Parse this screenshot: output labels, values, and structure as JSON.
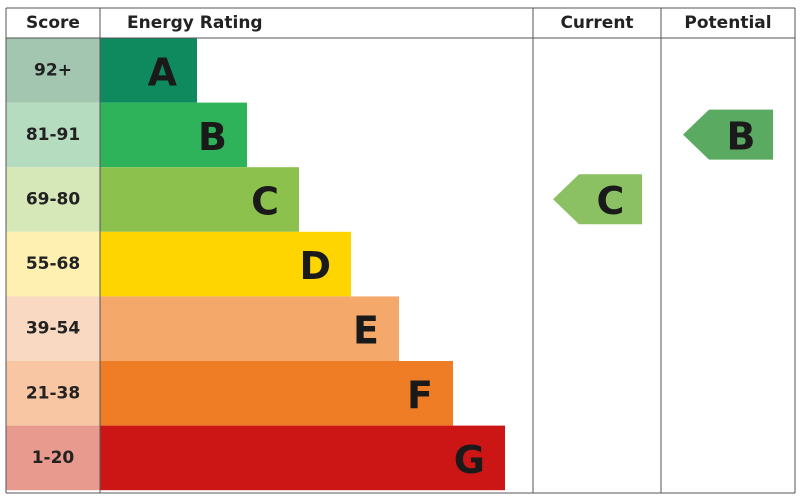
{
  "header": {
    "score": "Score",
    "rating": "Energy Rating",
    "current": "Current",
    "potential": "Potential"
  },
  "rows": [
    {
      "score": "92+",
      "band": "A",
      "color": "#0f8a5f",
      "score_color": "#a3c6b1"
    },
    {
      "score": "81-91",
      "band": "B",
      "color": "#2fb35a",
      "score_color": "#b5dcbf"
    },
    {
      "score": "69-80",
      "band": "C",
      "color": "#8cc14e",
      "score_color": "#d6e8b8"
    },
    {
      "score": "55-68",
      "band": "D",
      "color": "#ffd500",
      "score_color": "#fdf0b0"
    },
    {
      "score": "39-54",
      "band": "E",
      "color": "#f4a86a",
      "score_color": "#f9d9c2"
    },
    {
      "score": "21-38",
      "band": "F",
      "color": "#ee7d26",
      "score_color": "#f8c6a3"
    },
    {
      "score": "1-20",
      "band": "G",
      "color": "#cc1616",
      "score_color": "#e89a8f"
    }
  ],
  "current": {
    "band": "C",
    "color": "#8cc163"
  },
  "potential": {
    "band": "B",
    "color": "#5aaa62"
  }
}
